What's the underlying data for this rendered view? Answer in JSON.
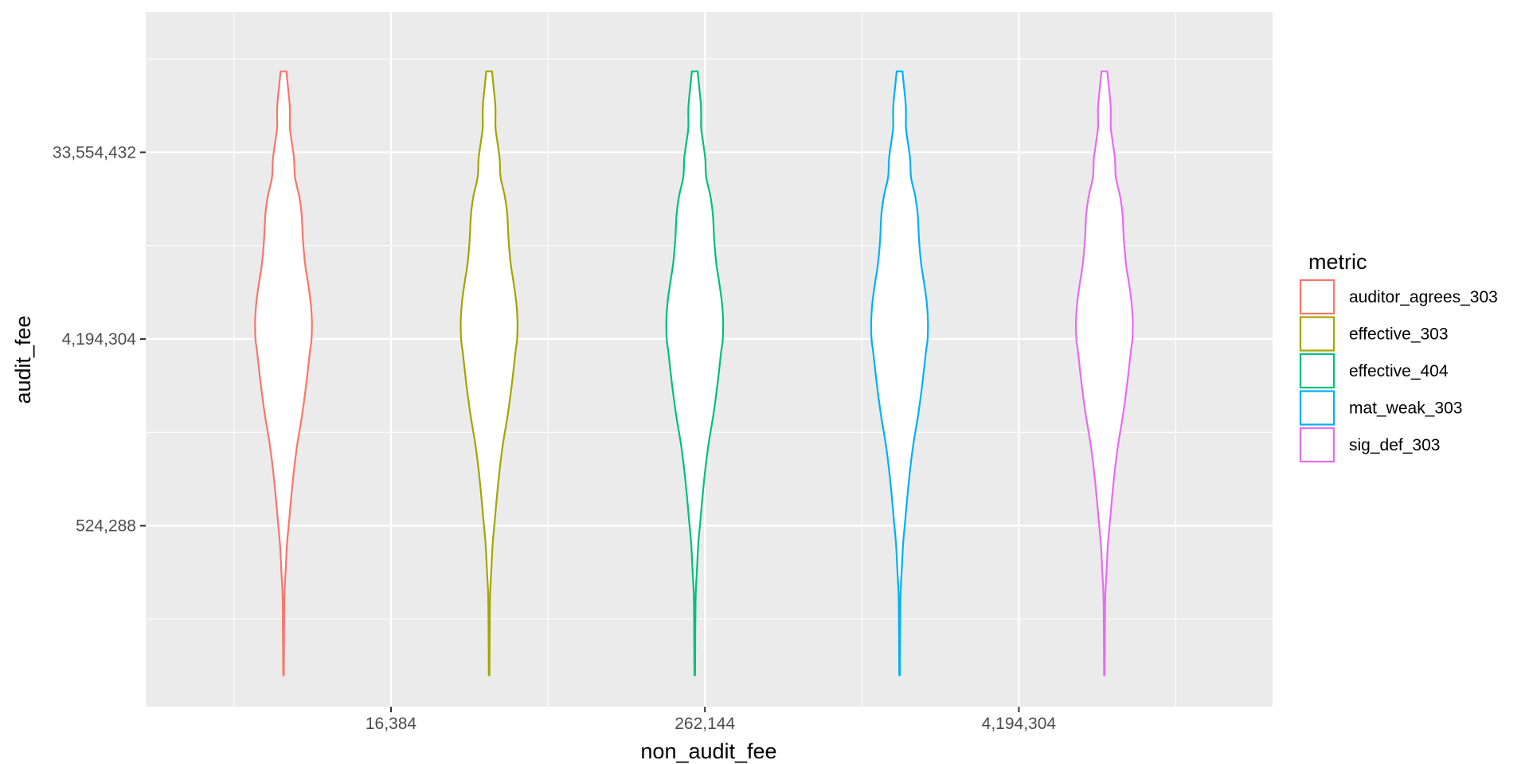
{
  "chart_data": {
    "type": "violin",
    "xlabel": "non_audit_fee",
    "ylabel": "audit_fee",
    "x_scale": "log2",
    "y_scale": "log2",
    "x_ticks": [
      {
        "value": 16384,
        "label": "16,384"
      },
      {
        "value": 262144,
        "label": "262,144"
      },
      {
        "value": 4194304,
        "label": "4,194,304"
      }
    ],
    "y_ticks": [
      {
        "value": 524288,
        "label": "524,288"
      },
      {
        "value": 4194304,
        "label": "4,194,304"
      },
      {
        "value": 33554432,
        "label": "33,554,432"
      }
    ],
    "grid": true,
    "legend": {
      "title": "metric",
      "position": "right",
      "entries": [
        {
          "name": "auditor_agrees_303",
          "color": "#F8766D"
        },
        {
          "name": "effective_303",
          "color": "#A3A500"
        },
        {
          "name": "effective_404",
          "color": "#00BF7D"
        },
        {
          "name": "mat_weak_303",
          "color": "#00B0F6"
        },
        {
          "name": "sig_def_303",
          "color": "#E76BF3"
        }
      ]
    },
    "violin_profile": {
      "comment_free": true,
      "y_log2": [
        16.6,
        17.1,
        17.5,
        17.9,
        18.3,
        18.7,
        19.1,
        19.5,
        19.9,
        20.3,
        20.8,
        21.3,
        21.8,
        22.0,
        22.3,
        22.6,
        22.9,
        23.2,
        23.6,
        24.0,
        24.3,
        24.6,
        24.9,
        25.2,
        25.4,
        25.7,
        25.9,
        26.1,
        26.3
      ],
      "half_width": [
        0.2,
        0.3,
        0.4,
        0.6,
        1.4,
        2.2,
        3.6,
        5.0,
        6.6,
        8.6,
        11.8,
        14.4,
        16.6,
        17.6,
        17.8,
        17.0,
        15.4,
        13.6,
        12.2,
        11.4,
        9.8,
        7.2,
        6.6,
        5.0,
        4.0,
        4.0,
        3.4,
        2.6,
        1.8
      ]
    },
    "series": [
      {
        "name": "auditor_agrees_303",
        "x_log2": 12.63,
        "y_min_log2": 16.6,
        "y_max_log2": 26.3
      },
      {
        "name": "effective_303",
        "x_log2": 15.25,
        "y_min_log2": 16.6,
        "y_max_log2": 26.3
      },
      {
        "name": "effective_404",
        "x_log2": 17.87,
        "y_min_log2": 16.6,
        "y_max_log2": 26.3
      },
      {
        "name": "mat_weak_303",
        "x_log2": 20.48,
        "y_min_log2": 16.6,
        "y_max_log2": 26.3
      },
      {
        "name": "sig_def_303",
        "x_log2": 23.09,
        "y_min_log2": 16.6,
        "y_max_log2": 26.3
      }
    ]
  }
}
